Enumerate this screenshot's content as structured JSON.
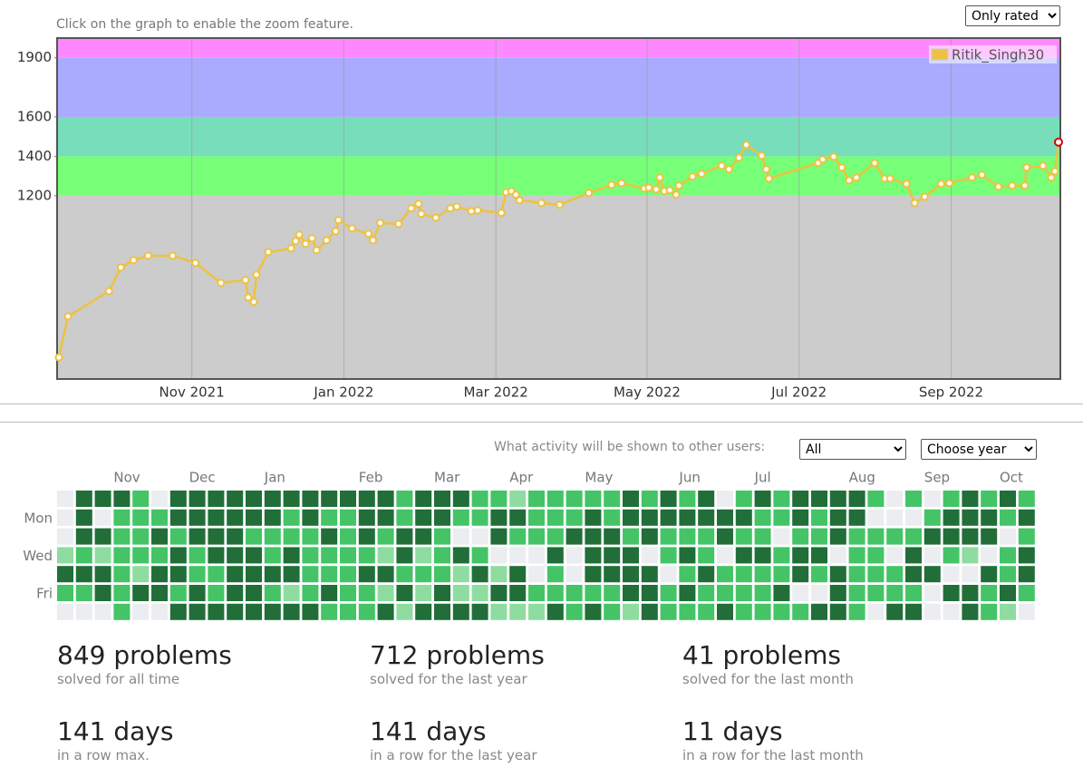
{
  "header": {
    "zoom_hint": "Click on the graph to enable the zoom feature.",
    "filter_select": "Only rated"
  },
  "chart_data": {
    "type": "line",
    "xlim": [
      2021.685,
      2022.787
    ],
    "xticks": [
      {
        "value": 2021.833,
        "label": "Nov 2021"
      },
      {
        "value": 2022,
        "label": "Jan 2022"
      },
      {
        "value": 2022.167,
        "label": "Mar 2022"
      },
      {
        "value": 2022.333,
        "label": "May 2022"
      },
      {
        "value": 2022.5,
        "label": "Jul 2022"
      },
      {
        "value": 2022.667,
        "label": "Sep 2022"
      }
    ],
    "ylim": [
      270,
      2000
    ],
    "yticks": [
      1200,
      1400,
      1600,
      1900
    ],
    "grid": true,
    "legend": "top-right",
    "bands": [
      {
        "from": 270,
        "to": 1200,
        "color": "#cccccc"
      },
      {
        "from": 1200,
        "to": 1400,
        "color": "#77ff77"
      },
      {
        "from": 1400,
        "to": 1600,
        "color": "#77ddbb"
      },
      {
        "from": 1600,
        "to": 1900,
        "color": "#aaaaff"
      },
      {
        "from": 1900,
        "to": 2000,
        "color": "#ff88ff"
      }
    ],
    "highlight_color": "#dd0000",
    "series": [
      {
        "name": "Ritik_Singh30",
        "color": "#edc240",
        "x": [
          2021.687,
          2021.697,
          2021.742,
          2021.755,
          2021.769,
          2021.785,
          2021.812,
          2021.837,
          2021.865,
          2021.892,
          2021.895,
          2021.901,
          2021.904,
          2021.917,
          2021.942,
          2021.947,
          2021.951,
          2021.958,
          2021.965,
          2021.97,
          2021.981,
          2021.991,
          2021.994,
          2022.009,
          2022.027,
          2022.032,
          2022.04,
          2022.06,
          2022.074,
          2022.082,
          2022.085,
          2022.101,
          2022.117,
          2022.124,
          2022.14,
          2022.147,
          2022.173,
          2022.178,
          2022.184,
          2022.189,
          2022.193,
          2022.217,
          2022.237,
          2022.269,
          2022.294,
          2022.305,
          2022.33,
          2022.335,
          2022.343,
          2022.347,
          2022.352,
          2022.358,
          2022.365,
          2022.368,
          2022.383,
          2022.393,
          2022.415,
          2022.423,
          2022.434,
          2022.442,
          2022.459,
          2022.464,
          2022.467,
          2022.521,
          2022.526,
          2022.538,
          2022.547,
          2022.555,
          2022.563,
          2022.583,
          2022.594,
          2022.6,
          2022.618,
          2022.627,
          2022.638,
          2022.656,
          2022.665,
          2022.69,
          2022.701,
          2022.719,
          2022.734,
          2022.748,
          2022.75,
          2022.768,
          2022.777,
          2022.781,
          2022.785
        ],
        "values": [
          380,
          588,
          716,
          836,
          873,
          896,
          896,
          859,
          758,
          772,
          684,
          661,
          799,
          914,
          933,
          970,
          1002,
          956,
          984,
          924,
          974,
          1020,
          1076,
          1034,
          1007,
          974,
          1062,
          1057,
          1136,
          1159,
          1108,
          1089,
          1136,
          1145,
          1122,
          1126,
          1113,
          1218,
          1223,
          1205,
          1177,
          1163,
          1154,
          1214,
          1255,
          1264,
          1237,
          1241,
          1232,
          1292,
          1223,
          1228,
          1205,
          1251,
          1297,
          1311,
          1352,
          1334,
          1393,
          1458,
          1403,
          1334,
          1287,
          1366,
          1384,
          1398,
          1343,
          1278,
          1292,
          1366,
          1287,
          1287,
          1260,
          1163,
          1195,
          1260,
          1264,
          1292,
          1306,
          1246,
          1251,
          1251,
          1343,
          1352,
          1292,
          1324,
          1472
        ]
      }
    ]
  },
  "activity": {
    "question": "What activity will be shown to other users:",
    "visibility_select": "All",
    "year_select": "Choose year",
    "colors": [
      "#ebedf0",
      "#8fdca0",
      "#44c466",
      "#216e39"
    ],
    "week_labels": [
      null,
      null,
      null,
      "Nov",
      null,
      null,
      null,
      "Dec",
      null,
      null,
      null,
      "Jan",
      null,
      null,
      null,
      null,
      "Feb",
      null,
      null,
      null,
      "Mar",
      null,
      null,
      null,
      "Apr",
      null,
      null,
      null,
      "May",
      null,
      null,
      null,
      null,
      "Jun",
      null,
      null,
      null,
      "Jul",
      null,
      null,
      null,
      null,
      "Aug",
      null,
      null,
      null,
      "Sep",
      null,
      null,
      null,
      "Oct",
      null
    ],
    "day_labels": [
      null,
      "Mon",
      null,
      "Wed",
      null,
      "Fri",
      null
    ],
    "levels": [
      [
        0,
        3,
        3,
        3,
        2,
        0,
        3,
        3,
        3,
        3,
        3,
        3,
        3,
        3,
        3,
        3,
        3,
        3,
        2,
        3,
        3,
        3,
        2,
        2,
        1,
        2,
        2,
        2,
        2,
        2,
        3,
        2,
        3,
        2,
        3,
        0,
        2,
        3,
        2,
        3,
        3,
        3,
        3,
        2,
        0,
        2,
        0,
        2,
        3,
        2,
        3,
        2
      ],
      [
        0,
        3,
        0,
        2,
        2,
        2,
        3,
        3,
        3,
        3,
        3,
        3,
        2,
        3,
        2,
        2,
        3,
        3,
        2,
        3,
        3,
        2,
        2,
        3,
        3,
        2,
        2,
        2,
        3,
        2,
        3,
        3,
        3,
        3,
        3,
        3,
        3,
        2,
        2,
        3,
        2,
        3,
        3,
        0,
        0,
        0,
        2,
        3,
        3,
        3,
        2,
        3
      ],
      [
        0,
        3,
        3,
        2,
        2,
        3,
        2,
        3,
        3,
        3,
        2,
        2,
        2,
        2,
        3,
        2,
        3,
        2,
        3,
        3,
        2,
        0,
        0,
        3,
        2,
        2,
        2,
        3,
        3,
        3,
        2,
        3,
        2,
        2,
        2,
        3,
        2,
        2,
        0,
        2,
        2,
        3,
        2,
        2,
        2,
        2,
        3,
        3,
        3,
        3,
        0,
        2
      ],
      [
        1,
        2,
        1,
        2,
        2,
        2,
        3,
        2,
        3,
        3,
        3,
        2,
        3,
        2,
        2,
        2,
        2,
        1,
        3,
        1,
        2,
        3,
        2,
        0,
        0,
        0,
        3,
        0,
        3,
        3,
        3,
        0,
        2,
        3,
        2,
        0,
        3,
        3,
        2,
        3,
        3,
        0,
        2,
        2,
        0,
        3,
        0,
        2,
        1,
        0,
        2,
        3
      ],
      [
        3,
        3,
        3,
        2,
        1,
        3,
        3,
        2,
        2,
        3,
        3,
        3,
        3,
        2,
        2,
        2,
        3,
        3,
        2,
        2,
        2,
        1,
        3,
        1,
        3,
        0,
        2,
        0,
        3,
        3,
        3,
        3,
        0,
        2,
        3,
        2,
        2,
        2,
        2,
        3,
        2,
        3,
        2,
        2,
        2,
        3,
        3,
        0,
        0,
        3,
        2,
        3
      ],
      [
        2,
        2,
        3,
        2,
        3,
        3,
        2,
        3,
        2,
        3,
        3,
        2,
        1,
        2,
        3,
        2,
        2,
        1,
        3,
        1,
        3,
        1,
        1,
        3,
        3,
        2,
        2,
        2,
        2,
        2,
        3,
        3,
        2,
        3,
        2,
        2,
        2,
        2,
        3,
        0,
        0,
        3,
        2,
        2,
        2,
        2,
        0,
        3,
        3,
        2,
        3,
        2
      ],
      [
        0,
        0,
        0,
        2,
        0,
        0,
        3,
        3,
        3,
        3,
        3,
        3,
        3,
        3,
        2,
        2,
        2,
        3,
        1,
        3,
        3,
        3,
        3,
        1,
        1,
        1,
        3,
        2,
        3,
        2,
        1,
        3,
        2,
        2,
        2,
        3,
        2,
        2,
        2,
        2,
        3,
        3,
        2,
        0,
        3,
        3,
        0,
        0,
        3,
        2,
        1,
        0
      ]
    ]
  },
  "stats": [
    {
      "value": "849 problems",
      "caption": "solved for all time"
    },
    {
      "value": "712 problems",
      "caption": "solved for the last year"
    },
    {
      "value": "41 problems",
      "caption": "solved for the last month"
    },
    {
      "value": "141 days",
      "caption": "in a row max."
    },
    {
      "value": "141 days",
      "caption": "in a row for the last year"
    },
    {
      "value": "11 days",
      "caption": "in a row for the last month"
    }
  ]
}
